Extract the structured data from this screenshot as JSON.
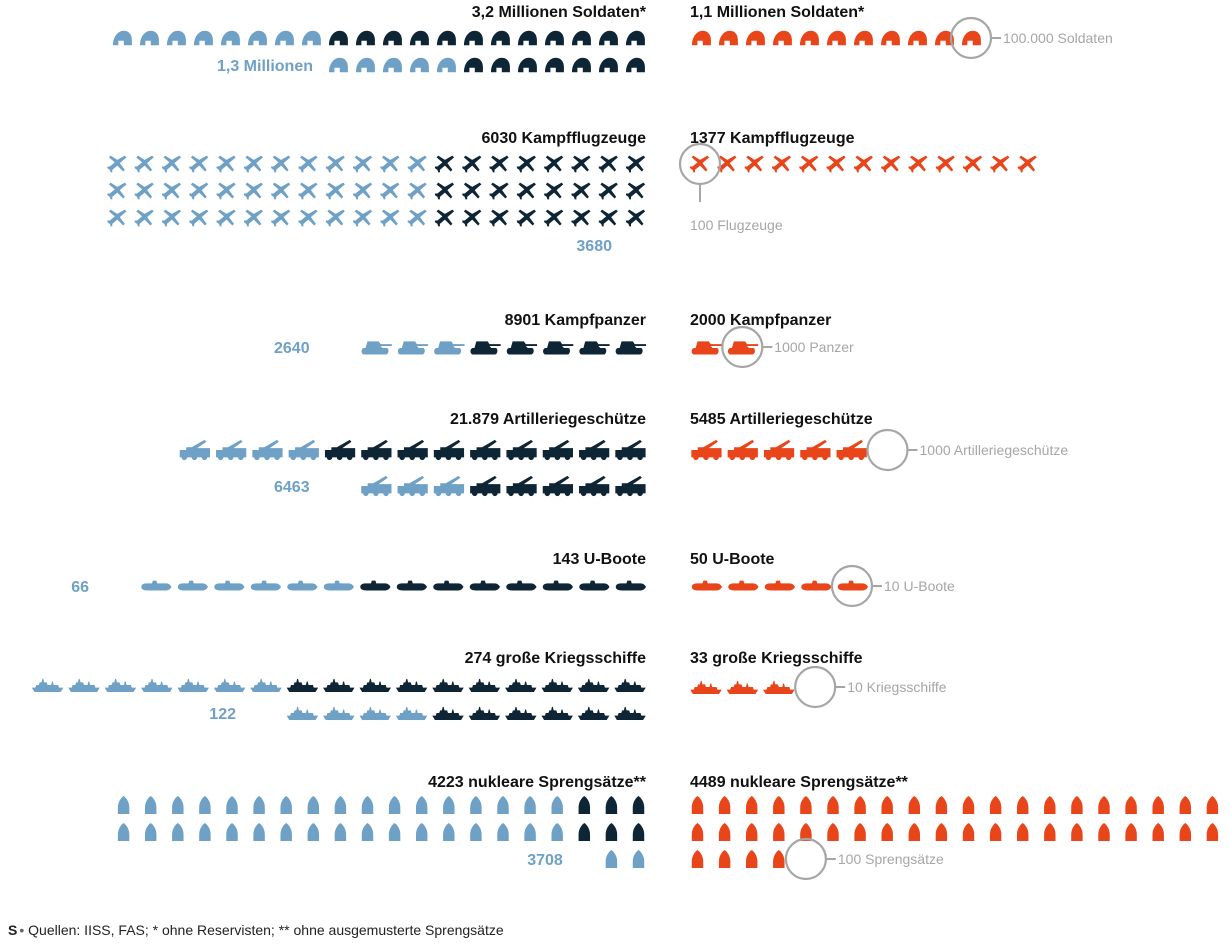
{
  "colors": {
    "left_light": "#6fa1c6",
    "left_dark": "#0d2535",
    "right": "#e8461a",
    "right_faint": "#f6c3b2",
    "left_faint": "#d6e5f0",
    "unit_gray": "#a6a6a6"
  },
  "chart_data": {
    "type": "isotype",
    "rows": [
      {
        "key": "soldiers",
        "icon": "helmet-icon",
        "left": {
          "title": "3,2 Millionen Soldaten*",
          "value": 3200000,
          "highlight": 1300000,
          "highlight_label": "1,3 Millionen"
        },
        "right": {
          "title": "1,1 Millionen Soldaten*",
          "value": 1100000,
          "unit_value": 100000,
          "unit_label": "100.000 Soldaten"
        }
      },
      {
        "key": "aircraft",
        "icon": "jet-icon",
        "left": {
          "title": "6030 Kampfflugzeuge",
          "value": 6030,
          "highlight": 3680,
          "highlight_label": "3680"
        },
        "right": {
          "title": "1377 Kampfflugzeuge",
          "value": 1377,
          "unit_value": 100,
          "unit_label": "100 Flugzeuge"
        }
      },
      {
        "key": "tanks",
        "icon": "tank-icon",
        "left": {
          "title": "8901 Kampfpanzer",
          "value": 8901,
          "highlight": 2640,
          "highlight_label": "2640"
        },
        "right": {
          "title": "2000 Kampfpanzer",
          "value": 2000,
          "unit_value": 1000,
          "unit_label": "1000 Panzer"
        }
      },
      {
        "key": "artillery",
        "icon": "artillery-icon",
        "left": {
          "title": "21.879 Artilleriegeschütze",
          "value": 21879,
          "highlight": 6463,
          "highlight_label": "6463"
        },
        "right": {
          "title": "5485 Artilleriegeschütze",
          "value": 5485,
          "unit_value": 1000,
          "unit_label": "1000 Artilleriegeschütze"
        }
      },
      {
        "key": "submarines",
        "icon": "submarine-icon",
        "left": {
          "title": "143 U-Boote",
          "value": 143,
          "highlight": 66,
          "highlight_label": "66"
        },
        "right": {
          "title": "50 U-Boote",
          "value": 50,
          "unit_value": 10,
          "unit_label": "10 U-Boote"
        }
      },
      {
        "key": "warships",
        "icon": "warship-icon",
        "left": {
          "title": "274 große Kriegsschiffe",
          "value": 274,
          "highlight": 122,
          "highlight_label": "122"
        },
        "right": {
          "title": "33 große Kriegsschiffe",
          "value": 33,
          "unit_value": 10,
          "unit_label": "10 Kriegsschiffe"
        }
      },
      {
        "key": "warheads",
        "icon": "warhead-icon",
        "left": {
          "title": "4223 nukleare Sprengsätze**",
          "value": 4223,
          "highlight": 3708,
          "highlight_label": "3708"
        },
        "right": {
          "title": "4489 nukleare Sprengsätze**",
          "value": 4489,
          "unit_value": 100,
          "unit_label": "100 Sprengsätze"
        }
      }
    ]
  },
  "footer": {
    "logo": "S",
    "text": "Quellen: IISS, FAS; * ohne Reservisten; ** ohne ausgemusterte Sprengsätze"
  }
}
